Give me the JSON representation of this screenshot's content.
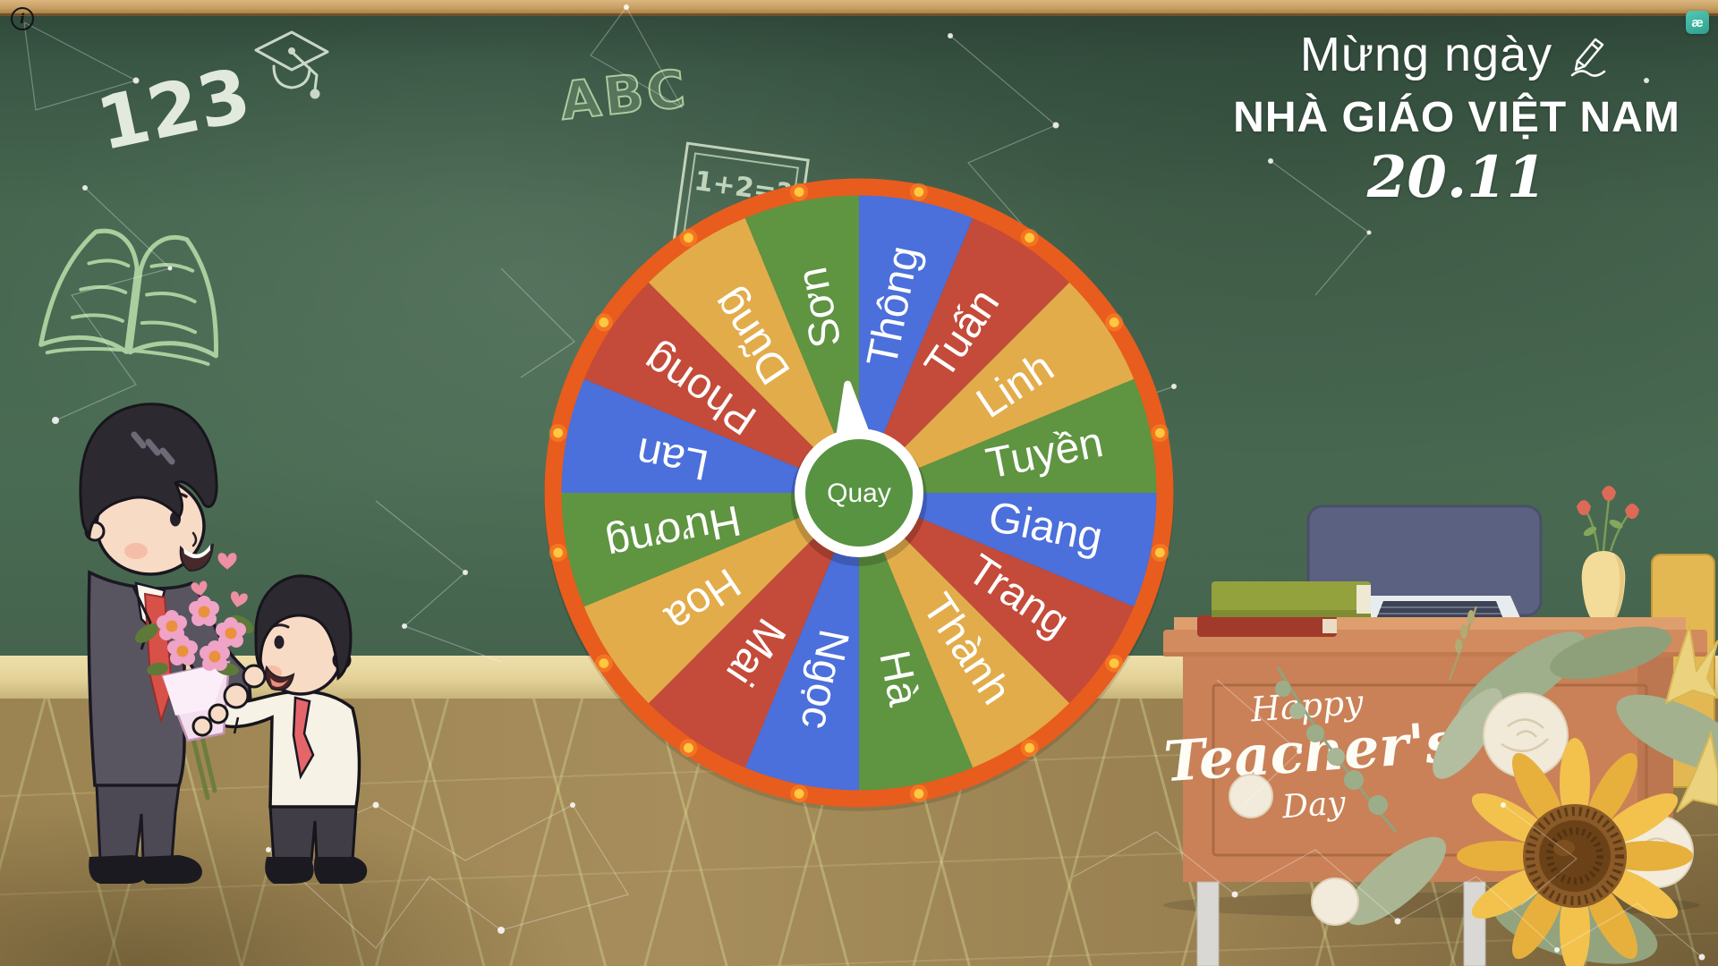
{
  "app": {
    "info_icon": "i",
    "brand_badge": "æ"
  },
  "title": {
    "greeting": "Mừng ngày",
    "main": "NHÀ GIÁO VIỆT NAM",
    "date": "20.11"
  },
  "chalkboard": {
    "numbers_doodle": "123",
    "letters_doodle": "ABC",
    "equation_doodle": "1+2=?"
  },
  "wheel": {
    "button_label": "Quay",
    "names": [
      "Thông",
      "Tuấn",
      "Linh",
      "Tuyền",
      "Giang",
      "Trang",
      "Thành",
      "Hà",
      "Ngọc",
      "Mai",
      "Hoa",
      "Hương",
      "Lan",
      "Phong",
      "Dũng",
      "Sơn"
    ],
    "palette": {
      "blue": "#4b6fdb",
      "red": "#c44a39",
      "yellow": "#e2ac4a",
      "green": "#5f9441"
    },
    "color_order": [
      "blue",
      "red",
      "yellow",
      "green"
    ],
    "rim_color": "#e85c1d",
    "dot_color": "#ffc840",
    "hub_color": "#579340",
    "label_color": "#ffffff"
  },
  "desk": {
    "caption": {
      "word1": "Happy",
      "word2": "Teacher's",
      "word3": "Day"
    }
  }
}
